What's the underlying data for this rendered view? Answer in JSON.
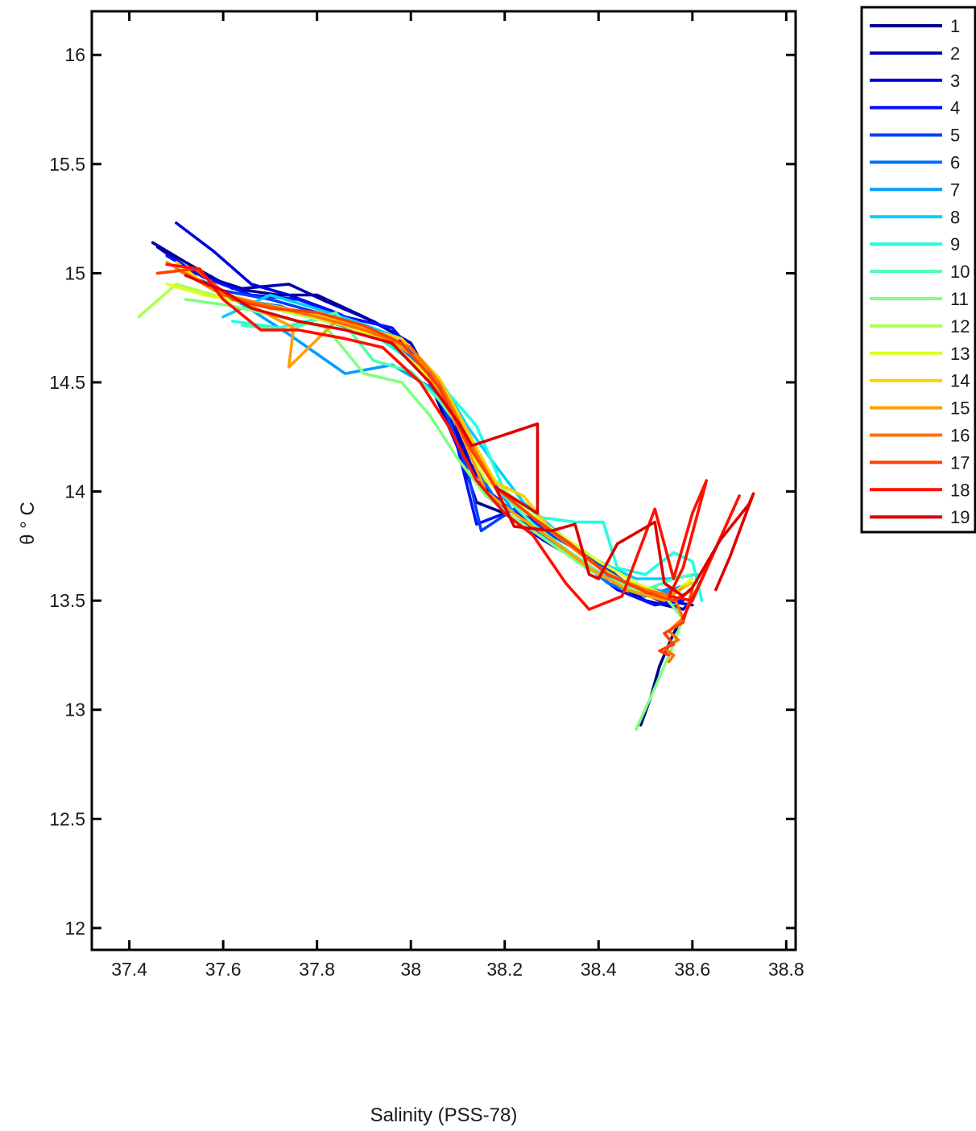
{
  "chart_data": {
    "type": "line",
    "title": "",
    "xlabel": "Salinity (PSS-78)",
    "ylabel": "θ ° C",
    "xlim": [
      37.32,
      38.82
    ],
    "ylim": [
      11.9,
      16.2
    ],
    "xticks": [
      37.4,
      37.6,
      37.8,
      38,
      38.2,
      38.4,
      38.6,
      38.8
    ],
    "xtick_labels": [
      "37.4",
      "37.6",
      "37.8",
      "38",
      "38.2",
      "38.4",
      "38.6",
      "38.8"
    ],
    "yticks": [
      12,
      12.5,
      13,
      13.5,
      14,
      14.5,
      15,
      15.5,
      16
    ],
    "ytick_labels": [
      "12",
      "12.5",
      "13",
      "13.5",
      "14",
      "14.5",
      "15",
      "15.5",
      "16"
    ],
    "grid": false,
    "legend": {
      "placement": "outside-top-right"
    },
    "series": [
      {
        "name": "1",
        "color": "#00008f",
        "x": [
          37.45,
          37.52,
          37.62,
          37.72,
          37.8,
          37.9,
          37.97,
          38.04,
          38.1,
          38.14,
          38.2,
          38.27,
          38.34,
          38.42,
          38.5,
          38.56,
          38.58,
          38.56,
          38.53,
          38.51,
          38.49
        ],
        "y": [
          15.14,
          15.05,
          14.93,
          14.9,
          14.9,
          14.8,
          14.72,
          14.5,
          14.2,
          13.95,
          13.9,
          13.82,
          13.72,
          13.6,
          13.5,
          13.47,
          13.42,
          13.35,
          13.2,
          13.05,
          12.93
        ]
      },
      {
        "name": "2",
        "color": "#0000b3",
        "x": [
          37.46,
          37.54,
          37.64,
          37.74,
          37.82,
          37.92,
          38.0,
          38.06,
          38.12,
          38.18,
          38.25,
          38.32,
          38.4,
          38.47,
          38.53,
          38.58,
          38.6
        ],
        "y": [
          15.12,
          15.0,
          14.93,
          14.95,
          14.87,
          14.78,
          14.68,
          14.45,
          14.15,
          13.95,
          13.88,
          13.78,
          13.68,
          13.56,
          13.5,
          13.46,
          13.5
        ]
      },
      {
        "name": "3",
        "color": "#0000df",
        "x": [
          37.5,
          37.58,
          37.66,
          37.74,
          37.84,
          37.94,
          38.02,
          38.08,
          38.14,
          38.22,
          38.3,
          38.38,
          38.46,
          38.54,
          38.6
        ],
        "y": [
          15.23,
          15.1,
          14.95,
          14.9,
          14.82,
          14.72,
          14.6,
          14.4,
          14.05,
          13.9,
          13.82,
          13.7,
          13.56,
          13.5,
          13.48
        ]
      },
      {
        "name": "4",
        "color": "#0010ff",
        "x": [
          37.48,
          37.56,
          37.66,
          37.76,
          37.86,
          37.96,
          38.04,
          38.1,
          38.14,
          38.2,
          38.28,
          38.36,
          38.44,
          38.52,
          38.58
        ],
        "y": [
          15.08,
          14.98,
          14.9,
          14.88,
          14.8,
          14.75,
          14.55,
          14.2,
          13.85,
          13.9,
          13.78,
          13.68,
          13.55,
          13.48,
          13.5
        ]
      },
      {
        "name": "5",
        "color": "#0040ff",
        "x": [
          37.52,
          37.6,
          37.7,
          37.8,
          37.9,
          38.0,
          38.06,
          38.12,
          38.15,
          38.22,
          38.3,
          38.38,
          38.46,
          38.52,
          38.57
        ],
        "y": [
          15.0,
          14.92,
          14.88,
          14.82,
          14.75,
          14.66,
          14.45,
          14.1,
          13.82,
          13.92,
          13.8,
          13.7,
          13.58,
          13.52,
          13.55
        ]
      },
      {
        "name": "6",
        "color": "#0070ff",
        "x": [
          37.54,
          37.62,
          37.72,
          37.82,
          37.92,
          38.0,
          38.08,
          38.14,
          38.2,
          38.26,
          38.34,
          38.42,
          38.5,
          38.56
        ],
        "y": [
          14.98,
          14.88,
          14.85,
          14.78,
          14.72,
          14.62,
          14.42,
          14.1,
          13.9,
          13.82,
          13.72,
          13.58,
          13.52,
          13.56
        ]
      },
      {
        "name": "7",
        "color": "#00a0ff",
        "x": [
          37.56,
          37.64,
          37.74,
          37.86,
          37.96,
          38.04,
          38.1,
          38.16,
          38.22,
          38.3,
          38.38,
          38.46,
          38.54,
          38.6
        ],
        "y": [
          14.95,
          14.86,
          14.72,
          14.54,
          14.58,
          14.48,
          14.3,
          14.1,
          13.9,
          13.78,
          13.65,
          13.58,
          13.54,
          13.58
        ]
      },
      {
        "name": "8",
        "color": "#00d0ff",
        "x": [
          37.6,
          37.7,
          37.78,
          37.88,
          37.98,
          38.06,
          38.12,
          38.18,
          38.24,
          38.32,
          38.4,
          38.48,
          38.55,
          38.61
        ],
        "y": [
          14.8,
          14.9,
          14.85,
          14.78,
          14.7,
          14.52,
          14.3,
          14.12,
          13.95,
          13.8,
          13.68,
          13.6,
          13.6,
          13.62
        ]
      },
      {
        "name": "9",
        "color": "#20ffdf",
        "x": [
          37.62,
          37.72,
          37.82,
          37.92,
          38.0,
          38.08,
          38.14,
          38.2,
          38.28,
          38.35,
          38.41,
          38.44,
          38.5,
          38.56,
          38.6,
          38.62
        ],
        "y": [
          14.78,
          14.75,
          14.8,
          14.72,
          14.6,
          14.45,
          14.3,
          14.0,
          13.88,
          13.86,
          13.86,
          13.65,
          13.62,
          13.72,
          13.68,
          13.5
        ]
      },
      {
        "name": "10",
        "color": "#50ffaf",
        "x": [
          37.64,
          37.74,
          37.84,
          37.92,
          38.0,
          38.06,
          38.12,
          38.18,
          38.26,
          38.34,
          38.42,
          38.5,
          38.56,
          38.6
        ],
        "y": [
          14.76,
          14.74,
          14.82,
          14.6,
          14.55,
          14.42,
          14.25,
          14.02,
          13.85,
          13.72,
          13.6,
          13.55,
          13.6,
          13.62
        ]
      },
      {
        "name": "11",
        "color": "#80ff80",
        "x": [
          37.52,
          37.62,
          37.72,
          37.82,
          37.9,
          37.98,
          38.04,
          38.1,
          38.16,
          38.22,
          38.3,
          38.38,
          38.46,
          38.54,
          38.58,
          38.56,
          38.52,
          38.48
        ],
        "y": [
          14.88,
          14.85,
          14.8,
          14.75,
          14.54,
          14.5,
          14.35,
          14.15,
          13.98,
          13.88,
          13.76,
          13.64,
          13.56,
          13.52,
          13.42,
          13.3,
          13.1,
          12.91
        ]
      },
      {
        "name": "12",
        "color": "#afff50",
        "x": [
          37.42,
          37.5,
          37.58,
          37.68,
          37.78,
          37.88,
          37.98,
          38.06,
          38.12,
          38.18,
          38.26,
          38.34,
          38.42,
          38.5,
          38.56,
          38.6
        ],
        "y": [
          14.8,
          14.95,
          14.9,
          14.85,
          14.8,
          14.75,
          14.68,
          14.48,
          14.25,
          14.05,
          13.88,
          13.75,
          13.62,
          13.54,
          13.5,
          13.55
        ]
      },
      {
        "name": "13",
        "color": "#dfff20",
        "x": [
          37.48,
          37.56,
          37.66,
          37.76,
          37.86,
          37.96,
          38.04,
          38.1,
          38.16,
          38.24,
          38.32,
          38.4,
          38.48,
          38.55,
          38.6
        ],
        "y": [
          14.95,
          14.9,
          14.86,
          14.82,
          14.76,
          14.68,
          14.52,
          14.3,
          14.05,
          13.92,
          13.8,
          13.68,
          13.58,
          13.52,
          13.6
        ]
      },
      {
        "name": "14",
        "color": "#ffcf00",
        "x": [
          37.5,
          37.58,
          37.68,
          37.78,
          37.88,
          37.98,
          38.06,
          38.12,
          38.18,
          38.24,
          38.3,
          38.38,
          38.46,
          38.54,
          38.6
        ],
        "y": [
          15.05,
          14.92,
          14.86,
          14.82,
          14.76,
          14.7,
          14.52,
          14.28,
          14.04,
          13.98,
          13.82,
          13.68,
          13.58,
          13.52,
          13.58
        ]
      },
      {
        "name": "15",
        "color": "#ff9f00",
        "x": [
          37.48,
          37.56,
          37.66,
          37.75,
          37.74,
          37.84,
          37.94,
          38.02,
          38.1,
          38.16,
          38.22,
          38.3,
          38.38,
          38.46,
          38.54,
          38.58
        ],
        "y": [
          15.05,
          14.95,
          14.85,
          14.75,
          14.57,
          14.78,
          14.72,
          14.6,
          14.3,
          14.0,
          13.9,
          13.78,
          13.65,
          13.55,
          13.5,
          13.56
        ]
      },
      {
        "name": "16",
        "color": "#ff7000",
        "x": [
          37.5,
          37.6,
          37.7,
          37.8,
          37.9,
          38.0,
          38.06,
          38.12,
          38.18,
          38.26,
          38.34,
          38.42,
          38.5,
          38.56,
          38.58,
          38.55,
          38.57,
          38.54,
          38.56,
          38.55
        ],
        "y": [
          15.02,
          14.9,
          14.85,
          14.8,
          14.74,
          14.66,
          14.5,
          14.25,
          14.02,
          13.88,
          13.75,
          13.62,
          13.55,
          13.52,
          13.42,
          13.36,
          13.32,
          13.28,
          13.25,
          13.22
        ]
      },
      {
        "name": "17",
        "color": "#ff4000",
        "x": [
          37.46,
          37.54,
          37.62,
          37.7,
          37.8,
          37.9,
          37.98,
          38.06,
          38.12,
          38.18,
          38.26,
          38.34,
          38.42,
          38.5,
          38.56,
          38.6,
          38.58,
          38.54,
          38.56,
          38.53,
          38.55
        ],
        "y": [
          15.0,
          15.02,
          14.88,
          14.84,
          14.82,
          14.76,
          14.68,
          14.48,
          14.22,
          14.02,
          13.88,
          13.76,
          13.62,
          13.54,
          13.5,
          13.55,
          13.4,
          13.35,
          13.3,
          13.27,
          13.25
        ]
      },
      {
        "name": "18",
        "color": "#ff1000",
        "x": [
          37.48,
          37.55,
          37.6,
          37.68,
          37.76,
          37.86,
          37.94,
          38.02,
          38.08,
          38.14,
          38.2,
          38.26,
          38.33,
          38.38,
          38.45,
          38.52,
          38.56,
          38.6,
          38.63,
          38.58,
          38.55,
          38.6,
          38.7,
          38.62,
          38.58
        ],
        "y": [
          15.04,
          15.02,
          14.88,
          14.74,
          14.74,
          14.7,
          14.66,
          14.5,
          14.3,
          14.05,
          13.9,
          13.8,
          13.58,
          13.46,
          13.52,
          13.92,
          13.6,
          13.9,
          14.05,
          13.65,
          13.52,
          13.5,
          13.98,
          13.6,
          13.42
        ]
      },
      {
        "name": "19",
        "color": "#df0000",
        "x": [
          37.52,
          37.6,
          37.66,
          37.76,
          37.86,
          37.96,
          38.04,
          38.1,
          38.13,
          38.27,
          38.27,
          38.18,
          38.22,
          38.3,
          38.35,
          38.38,
          38.4,
          38.44,
          38.52,
          38.54,
          38.58,
          38.6,
          38.66,
          38.72,
          38.73,
          38.68,
          38.65
        ],
        "y": [
          14.99,
          14.92,
          14.84,
          14.78,
          14.74,
          14.68,
          14.5,
          14.32,
          14.21,
          14.31,
          13.9,
          14.02,
          13.84,
          13.82,
          13.85,
          13.62,
          13.6,
          13.76,
          13.86,
          13.58,
          13.52,
          13.56,
          13.78,
          13.94,
          13.99,
          13.7,
          13.55
        ]
      }
    ]
  }
}
